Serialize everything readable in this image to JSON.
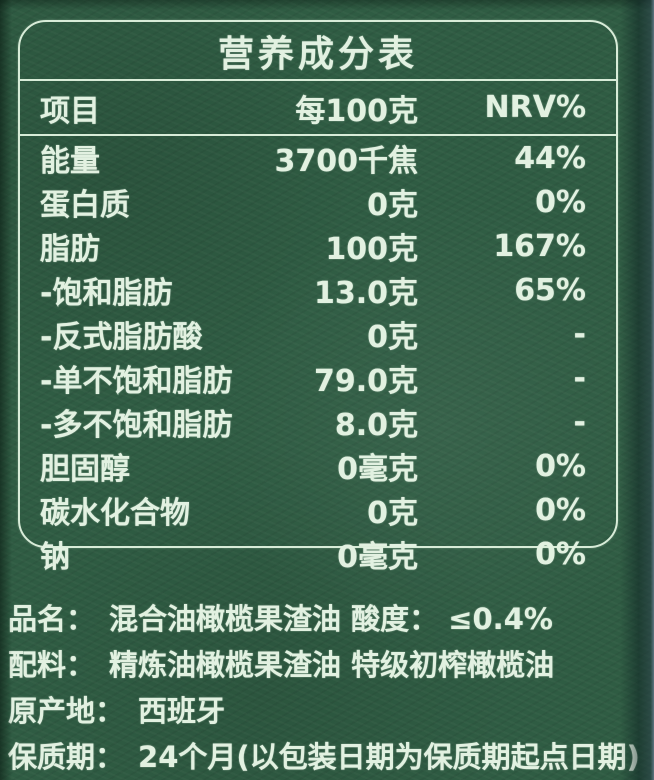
{
  "table": {
    "title": "营养成分表",
    "columns": [
      "项目",
      "每100克",
      "NRV%"
    ],
    "rows": [
      {
        "item": "能量",
        "per100g": "3700千焦",
        "nrv": "44%"
      },
      {
        "item": "蛋白质",
        "per100g": "0克",
        "nrv": "0%"
      },
      {
        "item": "脂肪",
        "per100g": "100克",
        "nrv": "167%"
      },
      {
        "item": "-饱和脂肪",
        "per100g": "13.0克",
        "nrv": "65%"
      },
      {
        "item": "-反式脂肪酸",
        "per100g": "0克",
        "nrv": "-"
      },
      {
        "item": "-单不饱和脂肪",
        "per100g": "79.0克",
        "nrv": "-"
      },
      {
        "item": "-多不饱和脂肪",
        "per100g": "8.0克",
        "nrv": "-"
      },
      {
        "item": "胆固醇",
        "per100g": "0毫克",
        "nrv": "0%"
      },
      {
        "item": "碳水化合物",
        "per100g": "0克",
        "nrv": "0%"
      },
      {
        "item": "钠",
        "per100g": "0毫克",
        "nrv": "0%"
      }
    ]
  },
  "info": [
    {
      "label": "品名：",
      "value": "混合油橄榄果渣油 酸度： ≤0.4%"
    },
    {
      "label": "配料：",
      "value": "精炼油橄榄果渣油 特级初榨橄榄油"
    },
    {
      "label": "原产地：",
      "value": "西班牙"
    },
    {
      "label": "保质期：",
      "value": "24个月(以包装日期为保质期起点日期)"
    }
  ],
  "colors": {
    "background": "#2f5c43",
    "text": "#e2f1e1",
    "border": "#d8ecd8"
  }
}
